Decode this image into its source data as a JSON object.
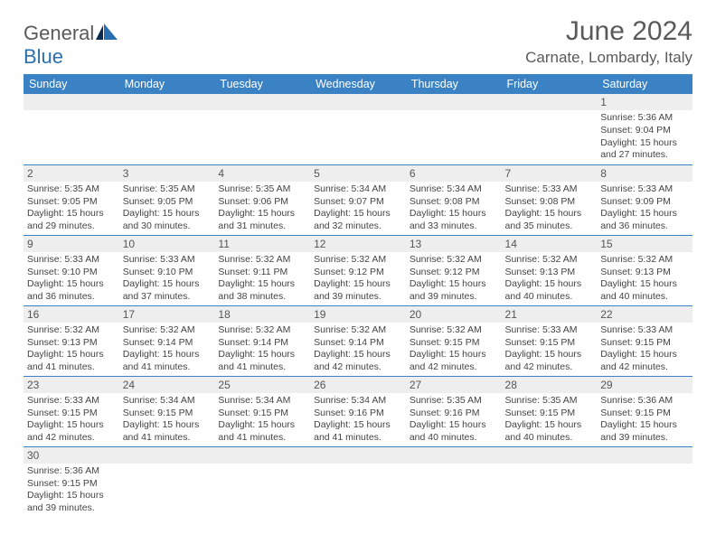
{
  "brand": {
    "part1": "General",
    "part2": "Blue"
  },
  "title": "June 2024",
  "location": "Carnate, Lombardy, Italy",
  "colors": {
    "header_bg": "#3a82c4",
    "header_text": "#ffffff",
    "daynum_bg": "#eeeeee",
    "row_border": "#3a82c4",
    "logo_gray": "#5a5a5a",
    "logo_blue": "#2b6fb0"
  },
  "day_headers": [
    "Sunday",
    "Monday",
    "Tuesday",
    "Wednesday",
    "Thursday",
    "Friday",
    "Saturday"
  ],
  "weeks": [
    [
      {
        "n": "",
        "sr": "",
        "ss": "",
        "dl": ""
      },
      {
        "n": "",
        "sr": "",
        "ss": "",
        "dl": ""
      },
      {
        "n": "",
        "sr": "",
        "ss": "",
        "dl": ""
      },
      {
        "n": "",
        "sr": "",
        "ss": "",
        "dl": ""
      },
      {
        "n": "",
        "sr": "",
        "ss": "",
        "dl": ""
      },
      {
        "n": "",
        "sr": "",
        "ss": "",
        "dl": ""
      },
      {
        "n": "1",
        "sr": "Sunrise: 5:36 AM",
        "ss": "Sunset: 9:04 PM",
        "dl": "Daylight: 15 hours and 27 minutes."
      }
    ],
    [
      {
        "n": "2",
        "sr": "Sunrise: 5:35 AM",
        "ss": "Sunset: 9:05 PM",
        "dl": "Daylight: 15 hours and 29 minutes."
      },
      {
        "n": "3",
        "sr": "Sunrise: 5:35 AM",
        "ss": "Sunset: 9:05 PM",
        "dl": "Daylight: 15 hours and 30 minutes."
      },
      {
        "n": "4",
        "sr": "Sunrise: 5:35 AM",
        "ss": "Sunset: 9:06 PM",
        "dl": "Daylight: 15 hours and 31 minutes."
      },
      {
        "n": "5",
        "sr": "Sunrise: 5:34 AM",
        "ss": "Sunset: 9:07 PM",
        "dl": "Daylight: 15 hours and 32 minutes."
      },
      {
        "n": "6",
        "sr": "Sunrise: 5:34 AM",
        "ss": "Sunset: 9:08 PM",
        "dl": "Daylight: 15 hours and 33 minutes."
      },
      {
        "n": "7",
        "sr": "Sunrise: 5:33 AM",
        "ss": "Sunset: 9:08 PM",
        "dl": "Daylight: 15 hours and 35 minutes."
      },
      {
        "n": "8",
        "sr": "Sunrise: 5:33 AM",
        "ss": "Sunset: 9:09 PM",
        "dl": "Daylight: 15 hours and 36 minutes."
      }
    ],
    [
      {
        "n": "9",
        "sr": "Sunrise: 5:33 AM",
        "ss": "Sunset: 9:10 PM",
        "dl": "Daylight: 15 hours and 36 minutes."
      },
      {
        "n": "10",
        "sr": "Sunrise: 5:33 AM",
        "ss": "Sunset: 9:10 PM",
        "dl": "Daylight: 15 hours and 37 minutes."
      },
      {
        "n": "11",
        "sr": "Sunrise: 5:32 AM",
        "ss": "Sunset: 9:11 PM",
        "dl": "Daylight: 15 hours and 38 minutes."
      },
      {
        "n": "12",
        "sr": "Sunrise: 5:32 AM",
        "ss": "Sunset: 9:12 PM",
        "dl": "Daylight: 15 hours and 39 minutes."
      },
      {
        "n": "13",
        "sr": "Sunrise: 5:32 AM",
        "ss": "Sunset: 9:12 PM",
        "dl": "Daylight: 15 hours and 39 minutes."
      },
      {
        "n": "14",
        "sr": "Sunrise: 5:32 AM",
        "ss": "Sunset: 9:13 PM",
        "dl": "Daylight: 15 hours and 40 minutes."
      },
      {
        "n": "15",
        "sr": "Sunrise: 5:32 AM",
        "ss": "Sunset: 9:13 PM",
        "dl": "Daylight: 15 hours and 40 minutes."
      }
    ],
    [
      {
        "n": "16",
        "sr": "Sunrise: 5:32 AM",
        "ss": "Sunset: 9:13 PM",
        "dl": "Daylight: 15 hours and 41 minutes."
      },
      {
        "n": "17",
        "sr": "Sunrise: 5:32 AM",
        "ss": "Sunset: 9:14 PM",
        "dl": "Daylight: 15 hours and 41 minutes."
      },
      {
        "n": "18",
        "sr": "Sunrise: 5:32 AM",
        "ss": "Sunset: 9:14 PM",
        "dl": "Daylight: 15 hours and 41 minutes."
      },
      {
        "n": "19",
        "sr": "Sunrise: 5:32 AM",
        "ss": "Sunset: 9:14 PM",
        "dl": "Daylight: 15 hours and 42 minutes."
      },
      {
        "n": "20",
        "sr": "Sunrise: 5:32 AM",
        "ss": "Sunset: 9:15 PM",
        "dl": "Daylight: 15 hours and 42 minutes."
      },
      {
        "n": "21",
        "sr": "Sunrise: 5:33 AM",
        "ss": "Sunset: 9:15 PM",
        "dl": "Daylight: 15 hours and 42 minutes."
      },
      {
        "n": "22",
        "sr": "Sunrise: 5:33 AM",
        "ss": "Sunset: 9:15 PM",
        "dl": "Daylight: 15 hours and 42 minutes."
      }
    ],
    [
      {
        "n": "23",
        "sr": "Sunrise: 5:33 AM",
        "ss": "Sunset: 9:15 PM",
        "dl": "Daylight: 15 hours and 42 minutes."
      },
      {
        "n": "24",
        "sr": "Sunrise: 5:34 AM",
        "ss": "Sunset: 9:15 PM",
        "dl": "Daylight: 15 hours and 41 minutes."
      },
      {
        "n": "25",
        "sr": "Sunrise: 5:34 AM",
        "ss": "Sunset: 9:15 PM",
        "dl": "Daylight: 15 hours and 41 minutes."
      },
      {
        "n": "26",
        "sr": "Sunrise: 5:34 AM",
        "ss": "Sunset: 9:16 PM",
        "dl": "Daylight: 15 hours and 41 minutes."
      },
      {
        "n": "27",
        "sr": "Sunrise: 5:35 AM",
        "ss": "Sunset: 9:16 PM",
        "dl": "Daylight: 15 hours and 40 minutes."
      },
      {
        "n": "28",
        "sr": "Sunrise: 5:35 AM",
        "ss": "Sunset: 9:15 PM",
        "dl": "Daylight: 15 hours and 40 minutes."
      },
      {
        "n": "29",
        "sr": "Sunrise: 5:36 AM",
        "ss": "Sunset: 9:15 PM",
        "dl": "Daylight: 15 hours and 39 minutes."
      }
    ],
    [
      {
        "n": "30",
        "sr": "Sunrise: 5:36 AM",
        "ss": "Sunset: 9:15 PM",
        "dl": "Daylight: 15 hours and 39 minutes."
      },
      {
        "n": "",
        "sr": "",
        "ss": "",
        "dl": ""
      },
      {
        "n": "",
        "sr": "",
        "ss": "",
        "dl": ""
      },
      {
        "n": "",
        "sr": "",
        "ss": "",
        "dl": ""
      },
      {
        "n": "",
        "sr": "",
        "ss": "",
        "dl": ""
      },
      {
        "n": "",
        "sr": "",
        "ss": "",
        "dl": ""
      },
      {
        "n": "",
        "sr": "",
        "ss": "",
        "dl": ""
      }
    ]
  ]
}
